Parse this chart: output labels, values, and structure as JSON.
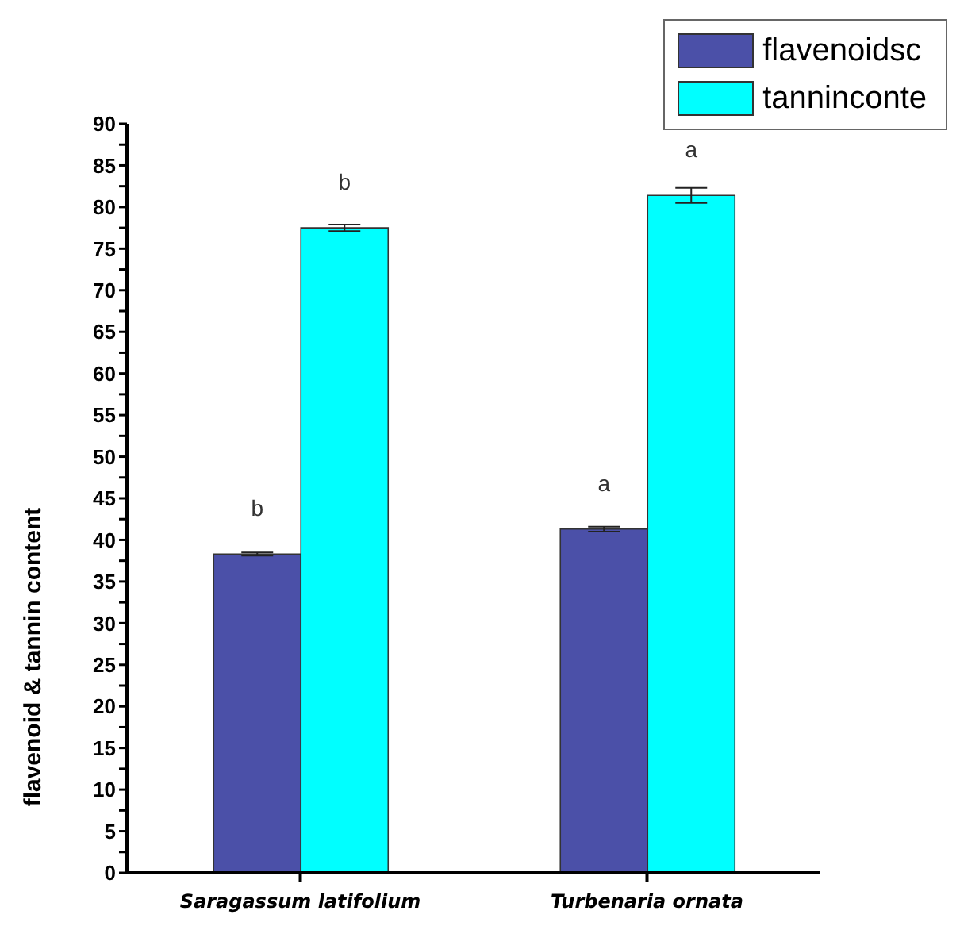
{
  "chart_data": {
    "type": "bar",
    "ylabel": "flavenoid & tannin content",
    "categories": [
      "Saragassum latifolium",
      "Turbenaria ornata"
    ],
    "series": [
      {
        "name": "flavenoidsc",
        "color": "#4b50a8",
        "values": [
          38.3,
          41.3
        ],
        "errors": [
          0.2,
          0.3
        ]
      },
      {
        "name": "tanninconte",
        "color": "#00ffff",
        "values": [
          77.5,
          81.4
        ],
        "errors": [
          0.4,
          0.9
        ]
      }
    ],
    "ylim": [
      0,
      90
    ],
    "yticks": [
      0,
      {
        "value": 2.5,
        "label": null
      },
      5,
      {
        "value": 7.5,
        "label": null
      },
      10,
      {
        "value": 12.5,
        "label": null
      },
      15,
      {
        "value": 17.5,
        "label": null
      },
      20,
      {
        "value": 22.5,
        "label": null
      },
      25,
      {
        "value": 27.5,
        "label": null
      },
      30,
      {
        "value": 32.5,
        "label": null
      },
      35,
      {
        "value": 37.5,
        "label": null
      },
      40,
      {
        "value": 42.5,
        "label": null
      },
      45,
      {
        "value": 47.5,
        "label": null
      },
      50,
      {
        "value": 52.5,
        "label": null
      },
      55,
      {
        "value": 57.5,
        "label": null
      },
      60,
      {
        "value": 62.5,
        "label": null
      },
      65,
      {
        "value": 67.5,
        "label": null
      },
      70,
      {
        "value": 72.5,
        "label": null
      },
      75,
      {
        "value": 77.5,
        "label": null
      },
      80,
      {
        "value": 82.5,
        "label": null
      },
      85,
      {
        "value": 87.5,
        "label": null
      },
      90
    ],
    "annotations": [
      {
        "text": "b",
        "x": "Saragassum latifolium",
        "y": 38.3
      },
      {
        "text": "b",
        "x": "Saragassum latifolium",
        "y": 77.5
      },
      {
        "text": "a",
        "x": "Turbenaria ornata",
        "y": 41.3
      },
      {
        "text": "a",
        "x": "Turbenaria ornata",
        "y": 81.4
      }
    ],
    "legend": "top right",
    "grid": false
  }
}
